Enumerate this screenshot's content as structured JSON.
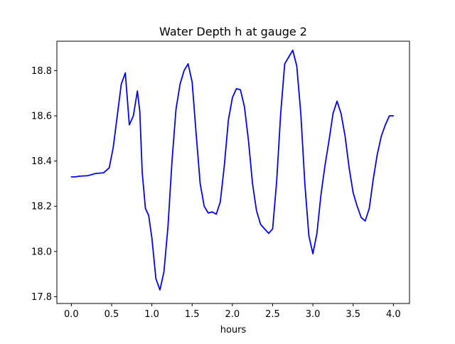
{
  "chart_data": {
    "type": "line",
    "title": "Water Depth h at gauge 2",
    "xlabel": "hours",
    "ylabel": "",
    "xlim": [
      -0.18,
      4.2
    ],
    "ylim": [
      17.77,
      18.93
    ],
    "xticks": [
      0.0,
      0.5,
      1.0,
      1.5,
      2.0,
      2.5,
      3.0,
      3.5,
      4.0
    ],
    "xtick_labels": [
      "0.0",
      "0.5",
      "1.0",
      "1.5",
      "2.0",
      "2.5",
      "3.0",
      "3.5",
      "4.0"
    ],
    "yticks": [
      17.8,
      18.0,
      18.2,
      18.4,
      18.6,
      18.8
    ],
    "ytick_labels": [
      "17.8",
      "18.0",
      "18.2",
      "18.4",
      "18.6",
      "18.8"
    ],
    "grid": false,
    "legend": null,
    "series": [
      {
        "color": "#0000ff",
        "x": [
          0.0,
          0.05,
          0.1,
          0.2,
          0.3,
          0.4,
          0.47,
          0.52,
          0.57,
          0.62,
          0.67,
          0.72,
          0.77,
          0.82,
          0.85,
          0.88,
          0.92,
          0.96,
          1.0,
          1.05,
          1.1,
          1.15,
          1.2,
          1.25,
          1.3,
          1.35,
          1.4,
          1.45,
          1.5,
          1.55,
          1.6,
          1.65,
          1.7,
          1.75,
          1.8,
          1.85,
          1.9,
          1.95,
          2.0,
          2.05,
          2.1,
          2.15,
          2.2,
          2.25,
          2.3,
          2.35,
          2.4,
          2.45,
          2.5,
          2.55,
          2.6,
          2.65,
          2.7,
          2.75,
          2.8,
          2.85,
          2.9,
          2.95,
          3.0,
          3.05,
          3.1,
          3.15,
          3.2,
          3.25,
          3.3,
          3.35,
          3.4,
          3.45,
          3.5,
          3.55,
          3.6,
          3.65,
          3.7,
          3.75,
          3.8,
          3.85,
          3.9,
          3.95,
          4.0
        ],
        "y": [
          18.33,
          18.33,
          18.333,
          18.335,
          18.345,
          18.348,
          18.37,
          18.46,
          18.6,
          18.74,
          18.79,
          18.56,
          18.6,
          18.71,
          18.62,
          18.35,
          18.19,
          18.16,
          18.06,
          17.88,
          17.83,
          17.91,
          18.11,
          18.4,
          18.63,
          18.74,
          18.8,
          18.83,
          18.75,
          18.52,
          18.3,
          18.2,
          18.17,
          18.175,
          18.165,
          18.22,
          18.38,
          18.58,
          18.68,
          18.72,
          18.715,
          18.64,
          18.49,
          18.3,
          18.18,
          18.12,
          18.1,
          18.08,
          18.1,
          18.31,
          18.61,
          18.83,
          18.86,
          18.89,
          18.82,
          18.61,
          18.3,
          18.07,
          17.99,
          18.08,
          18.25,
          18.38,
          18.49,
          18.61,
          18.665,
          18.61,
          18.51,
          18.37,
          18.26,
          18.2,
          18.15,
          18.135,
          18.19,
          18.32,
          18.43,
          18.51,
          18.56,
          18.6,
          18.6
        ]
      }
    ]
  }
}
